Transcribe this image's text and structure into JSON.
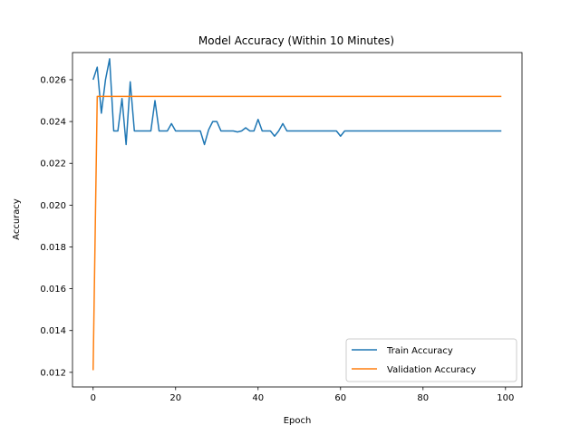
{
  "chart_data": {
    "type": "line",
    "title": "Model Accuracy (Within 10 Minutes)",
    "xlabel": "Epoch",
    "ylabel": "Accuracy",
    "xlim": [
      -5,
      104
    ],
    "ylim": [
      0.0113,
      0.0273
    ],
    "xticks": [
      0,
      20,
      40,
      60,
      80,
      100
    ],
    "yticks": [
      0.012,
      0.014,
      0.016,
      0.018,
      0.02,
      0.022,
      0.024,
      0.026
    ],
    "xtick_labels": [
      "0",
      "20",
      "40",
      "60",
      "80",
      "100"
    ],
    "ytick_labels": [
      "0.012",
      "0.014",
      "0.016",
      "0.018",
      "0.020",
      "0.022",
      "0.024",
      "0.026"
    ],
    "grid": false,
    "legend_position": "lower-right",
    "series": [
      {
        "name": "Train Accuracy",
        "color": "#1f77b4",
        "x": [
          0,
          1,
          2,
          3,
          4,
          5,
          6,
          7,
          8,
          9,
          10,
          11,
          12,
          13,
          14,
          15,
          16,
          17,
          18,
          19,
          20,
          21,
          22,
          23,
          24,
          25,
          26,
          27,
          28,
          29,
          30,
          31,
          32,
          33,
          34,
          35,
          36,
          37,
          38,
          39,
          40,
          41,
          42,
          43,
          44,
          45,
          46,
          47,
          48,
          49,
          50,
          51,
          52,
          53,
          54,
          55,
          56,
          57,
          58,
          59,
          60,
          61,
          62,
          63,
          64,
          65,
          66,
          67,
          68,
          69,
          70,
          71,
          72,
          73,
          74,
          75,
          76,
          77,
          78,
          79,
          80,
          81,
          82,
          83,
          84,
          85,
          86,
          87,
          88,
          89,
          90,
          91,
          92,
          93,
          94,
          95,
          96,
          97,
          98,
          99
        ],
        "y": [
          0.026,
          0.0266,
          0.0244,
          0.026,
          0.027,
          0.02355,
          0.02355,
          0.0251,
          0.0229,
          0.0259,
          0.02355,
          0.02355,
          0.02355,
          0.02355,
          0.02355,
          0.025,
          0.02355,
          0.02355,
          0.02355,
          0.0239,
          0.02355,
          0.02355,
          0.02355,
          0.02355,
          0.02355,
          0.02355,
          0.02355,
          0.0229,
          0.0236,
          0.024,
          0.024,
          0.02355,
          0.02355,
          0.02355,
          0.02355,
          0.0235,
          0.02355,
          0.0237,
          0.02355,
          0.02355,
          0.0241,
          0.02355,
          0.02355,
          0.02355,
          0.0233,
          0.02355,
          0.0239,
          0.02355,
          0.02355,
          0.02355,
          0.02355,
          0.02355,
          0.02355,
          0.02355,
          0.02355,
          0.02355,
          0.02355,
          0.02355,
          0.02355,
          0.02355,
          0.0233,
          0.02355,
          0.02355,
          0.02355,
          0.02355,
          0.02355,
          0.02355,
          0.02355,
          0.02355,
          0.02355,
          0.02355,
          0.02355,
          0.02355,
          0.02355,
          0.02355,
          0.02355,
          0.02355,
          0.02355,
          0.02355,
          0.02355,
          0.02355,
          0.02355,
          0.02355,
          0.02355,
          0.02355,
          0.02355,
          0.02355,
          0.02355,
          0.02355,
          0.02355,
          0.02355,
          0.02355,
          0.02355,
          0.02355,
          0.02355,
          0.02355,
          0.02355,
          0.02355,
          0.02355,
          0.02355
        ]
      },
      {
        "name": "Validation Accuracy",
        "color": "#ff7f0e",
        "x": [
          0,
          1,
          2,
          3,
          4,
          5,
          6,
          7,
          8,
          9,
          10,
          11,
          12,
          13,
          14,
          15,
          16,
          17,
          18,
          19,
          20,
          21,
          22,
          23,
          24,
          25,
          26,
          27,
          28,
          29,
          30,
          31,
          32,
          33,
          34,
          35,
          36,
          37,
          38,
          39,
          40,
          41,
          42,
          43,
          44,
          45,
          46,
          47,
          48,
          49,
          50,
          51,
          52,
          53,
          54,
          55,
          56,
          57,
          58,
          59,
          60,
          61,
          62,
          63,
          64,
          65,
          66,
          67,
          68,
          69,
          70,
          71,
          72,
          73,
          74,
          75,
          76,
          77,
          78,
          79,
          80,
          81,
          82,
          83,
          84,
          85,
          86,
          87,
          88,
          89,
          90,
          91,
          92,
          93,
          94,
          95,
          96,
          97,
          98,
          99
        ],
        "y": [
          0.0121,
          0.0252,
          0.0252,
          0.0252,
          0.0252,
          0.0252,
          0.0252,
          0.0252,
          0.0252,
          0.0252,
          0.0252,
          0.0252,
          0.0252,
          0.0252,
          0.0252,
          0.0252,
          0.0252,
          0.0252,
          0.0252,
          0.0252,
          0.0252,
          0.0252,
          0.0252,
          0.0252,
          0.0252,
          0.0252,
          0.0252,
          0.0252,
          0.0252,
          0.0252,
          0.0252,
          0.0252,
          0.0252,
          0.0252,
          0.0252,
          0.0252,
          0.0252,
          0.0252,
          0.0252,
          0.0252,
          0.0252,
          0.0252,
          0.0252,
          0.0252,
          0.0252,
          0.0252,
          0.0252,
          0.0252,
          0.0252,
          0.0252,
          0.0252,
          0.0252,
          0.0252,
          0.0252,
          0.0252,
          0.0252,
          0.0252,
          0.0252,
          0.0252,
          0.0252,
          0.0252,
          0.0252,
          0.0252,
          0.0252,
          0.0252,
          0.0252,
          0.0252,
          0.0252,
          0.0252,
          0.0252,
          0.0252,
          0.0252,
          0.0252,
          0.0252,
          0.0252,
          0.0252,
          0.0252,
          0.0252,
          0.0252,
          0.0252,
          0.0252,
          0.0252,
          0.0252,
          0.0252,
          0.0252,
          0.0252,
          0.0252,
          0.0252,
          0.0252,
          0.0252,
          0.0252,
          0.0252,
          0.0252,
          0.0252,
          0.0252,
          0.0252,
          0.0252,
          0.0252,
          0.0252,
          0.0252
        ]
      }
    ]
  }
}
